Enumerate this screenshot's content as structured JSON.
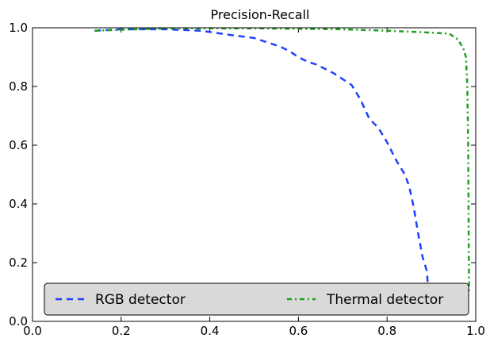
{
  "chart_data": {
    "type": "line",
    "title": "Precision-Recall",
    "xlabel": "",
    "ylabel": "",
    "xlim": [
      0.0,
      1.0
    ],
    "ylim": [
      0.0,
      1.0
    ],
    "xticks": [
      "0.0",
      "0.2",
      "0.4",
      "0.6",
      "0.8",
      "1.0"
    ],
    "yticks": [
      "0.0",
      "0.2",
      "0.4",
      "0.6",
      "0.8",
      "1.0"
    ],
    "grid": false,
    "legend_position": "bottom",
    "series": [
      {
        "name": "RGB detector",
        "color": "#1f3fff",
        "style": "dashed",
        "x": [
          0.14,
          0.2,
          0.3,
          0.38,
          0.45,
          0.5,
          0.53,
          0.56,
          0.58,
          0.6,
          0.62,
          0.64,
          0.66,
          0.68,
          0.7,
          0.72,
          0.74,
          0.76,
          0.78,
          0.8,
          0.82,
          0.84,
          0.85,
          0.86,
          0.87,
          0.88,
          0.89,
          0.895
        ],
        "y": [
          0.99,
          0.995,
          0.995,
          0.99,
          0.975,
          0.965,
          0.95,
          0.935,
          0.92,
          0.9,
          0.885,
          0.875,
          0.86,
          0.845,
          0.825,
          0.805,
          0.755,
          0.69,
          0.66,
          0.61,
          0.55,
          0.5,
          0.46,
          0.39,
          0.3,
          0.22,
          0.17,
          0.05
        ]
      },
      {
        "name": "Thermal detector",
        "color": "#1f9f1f",
        "style": "dashdot",
        "x": [
          0.14,
          0.3,
          0.5,
          0.7,
          0.8,
          0.88,
          0.94,
          0.96,
          0.972,
          0.978,
          0.981,
          0.983,
          0.984,
          0.985
        ],
        "y": [
          0.99,
          0.998,
          0.998,
          0.995,
          0.99,
          0.985,
          0.98,
          0.96,
          0.93,
          0.9,
          0.8,
          0.6,
          0.3,
          0.1
        ]
      }
    ]
  }
}
